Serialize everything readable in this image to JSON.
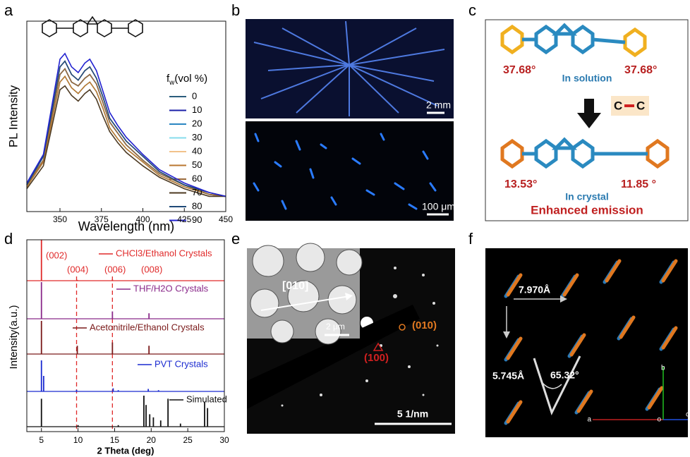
{
  "panel_labels": [
    "a",
    "b",
    "c",
    "d",
    "e",
    "f"
  ],
  "chart_data": [
    {
      "type": "line",
      "y_label": "PL Intensity",
      "x_label": "Wavelength (nm)",
      "legend_title": [
        "f",
        "w",
        "(vol  %)"
      ],
      "x": [
        330,
        340,
        345,
        350,
        353,
        357,
        361,
        365,
        368,
        372,
        376,
        380,
        385,
        390,
        400,
        410,
        425,
        440,
        450
      ],
      "xlim": [
        330,
        450
      ],
      "xticks": [
        350,
        375,
        400,
        425,
        450
      ],
      "ylim": [
        0,
        1
      ],
      "series": [
        {
          "name": "0",
          "color": "#2b5d7c",
          "values": [
            0.14,
            0.27,
            0.5,
            0.72,
            0.75,
            0.68,
            0.66,
            0.7,
            0.72,
            0.67,
            0.57,
            0.47,
            0.41,
            0.35,
            0.27,
            0.2,
            0.14,
            0.09,
            0.08
          ]
        },
        {
          "name": "10",
          "color": "#1b1fa8",
          "values": [
            0.14,
            0.29,
            0.52,
            0.76,
            0.79,
            0.72,
            0.69,
            0.74,
            0.76,
            0.7,
            0.6,
            0.49,
            0.43,
            0.37,
            0.29,
            0.21,
            0.14,
            0.1,
            0.08
          ]
        },
        {
          "name": "20",
          "color": "#2a86c2",
          "values": [
            0.14,
            0.27,
            0.5,
            0.72,
            0.75,
            0.68,
            0.66,
            0.7,
            0.72,
            0.67,
            0.57,
            0.47,
            0.41,
            0.35,
            0.27,
            0.2,
            0.14,
            0.09,
            0.08
          ]
        },
        {
          "name": "30",
          "color": "#86dcec",
          "values": [
            0.13,
            0.26,
            0.47,
            0.68,
            0.71,
            0.65,
            0.62,
            0.66,
            0.68,
            0.63,
            0.54,
            0.44,
            0.38,
            0.33,
            0.26,
            0.19,
            0.13,
            0.09,
            0.08
          ]
        },
        {
          "name": "40",
          "color": "#f2c28a",
          "values": [
            0.14,
            0.29,
            0.52,
            0.76,
            0.79,
            0.72,
            0.69,
            0.74,
            0.76,
            0.7,
            0.6,
            0.49,
            0.43,
            0.37,
            0.29,
            0.21,
            0.14,
            0.1,
            0.08
          ]
        },
        {
          "name": "50",
          "color": "#b9772f",
          "values": [
            0.13,
            0.26,
            0.47,
            0.68,
            0.71,
            0.65,
            0.62,
            0.66,
            0.68,
            0.63,
            0.54,
            0.44,
            0.38,
            0.33,
            0.26,
            0.19,
            0.13,
            0.09,
            0.08
          ]
        },
        {
          "name": "60",
          "color": "#9a6a3c",
          "values": [
            0.14,
            0.27,
            0.5,
            0.72,
            0.75,
            0.68,
            0.66,
            0.7,
            0.72,
            0.67,
            0.57,
            0.47,
            0.41,
            0.35,
            0.27,
            0.2,
            0.14,
            0.09,
            0.08
          ]
        },
        {
          "name": "70",
          "color": "#4d3a22",
          "values": [
            0.12,
            0.24,
            0.44,
            0.64,
            0.66,
            0.61,
            0.58,
            0.62,
            0.64,
            0.59,
            0.5,
            0.42,
            0.36,
            0.31,
            0.24,
            0.18,
            0.12,
            0.08,
            0.08
          ]
        },
        {
          "name": "80",
          "color": "#1f4a78",
          "values": [
            0.14,
            0.29,
            0.52,
            0.76,
            0.79,
            0.72,
            0.69,
            0.74,
            0.76,
            0.7,
            0.6,
            0.49,
            0.43,
            0.37,
            0.29,
            0.21,
            0.14,
            0.1,
            0.08
          ]
        },
        {
          "name": "90",
          "color": "#2222d0",
          "values": [
            0.15,
            0.3,
            0.55,
            0.8,
            0.83,
            0.76,
            0.73,
            0.78,
            0.8,
            0.74,
            0.63,
            0.52,
            0.45,
            0.39,
            0.3,
            0.22,
            0.15,
            0.1,
            0.08
          ]
        }
      ]
    },
    {
      "type": "stem",
      "y_label": "Intensity(a.u.)",
      "x_label": "2 Theta (deg)",
      "xlim": [
        3,
        30
      ],
      "xticks": [
        5,
        10,
        15,
        20,
        25,
        30
      ],
      "ylim": [
        0,
        1
      ],
      "reference_lines": [
        9.8,
        14.7
      ],
      "annotations": [
        {
          "text": "(002)",
          "x": 5.0
        },
        {
          "text": "(004)",
          "x": 9.8
        },
        {
          "text": "(006)",
          "x": 14.7
        },
        {
          "text": "(008)",
          "x": 19.7
        }
      ],
      "annotation_color": "#e02a2a",
      "series": [
        {
          "name": "CHCl3/Ethanol Crystals",
          "color": "#e02a2a",
          "x": [
            5.0,
            9.9,
            14.7
          ],
          "values": [
            1.0,
            0.02,
            0.03
          ]
        },
        {
          "name": "THF/H2O Crystals",
          "color": "#8a2a8a",
          "x": [
            5.0,
            14.7,
            19.7
          ],
          "values": [
            1.0,
            0.2,
            0.15
          ]
        },
        {
          "name": "Acetonitrile/Ethanol Crystals",
          "color": "#7a1a1a",
          "x": [
            5.0,
            9.9,
            14.7,
            19.7
          ],
          "values": [
            1.0,
            0.25,
            0.35,
            0.25
          ]
        },
        {
          "name": "PVT Crystals",
          "color": "#1a2ad0",
          "x": [
            5.0,
            5.3,
            9.8,
            14.8,
            15.5,
            19.6,
            21.0
          ],
          "values": [
            1.0,
            0.5,
            0.05,
            0.1,
            0.04,
            0.08,
            0.04
          ]
        },
        {
          "name": "Simulated",
          "color": "#111111",
          "x": [
            5.0,
            10.0,
            15.5,
            19.0,
            19.3,
            19.8,
            20.3,
            21.3,
            22.3,
            24.0,
            27.3,
            27.7
          ],
          "values": [
            0.9,
            0.05,
            0.05,
            1.0,
            0.7,
            0.4,
            0.3,
            0.2,
            0.9,
            0.1,
            0.8,
            0.6
          ]
        }
      ]
    }
  ],
  "panel_b": {
    "scale_top": "2 mm",
    "scale_bottom": "100 μm"
  },
  "panel_c": {
    "angle_left_top": "37.68°",
    "angle_right_top": "37.68°",
    "state_top": "In solution",
    "bond_left": "C",
    "bond_right": "C",
    "angle_left_bottom": "13.53°",
    "angle_right_bottom": "11.85 °",
    "state_bottom": "In crystal",
    "result": "Enhanced emission"
  },
  "panel_e": {
    "direction": "[010]",
    "inset_scale": "2 μm",
    "spot_1": "(010)",
    "spot_2": "(100)",
    "scale": "5 1/nm"
  },
  "panel_f": {
    "distance_a": "7.970Å",
    "distance_b": "5.745Å",
    "angle": "65.32°",
    "axis_b": "b",
    "axis_a": "a",
    "origin": "o",
    "axis_c": "c"
  }
}
